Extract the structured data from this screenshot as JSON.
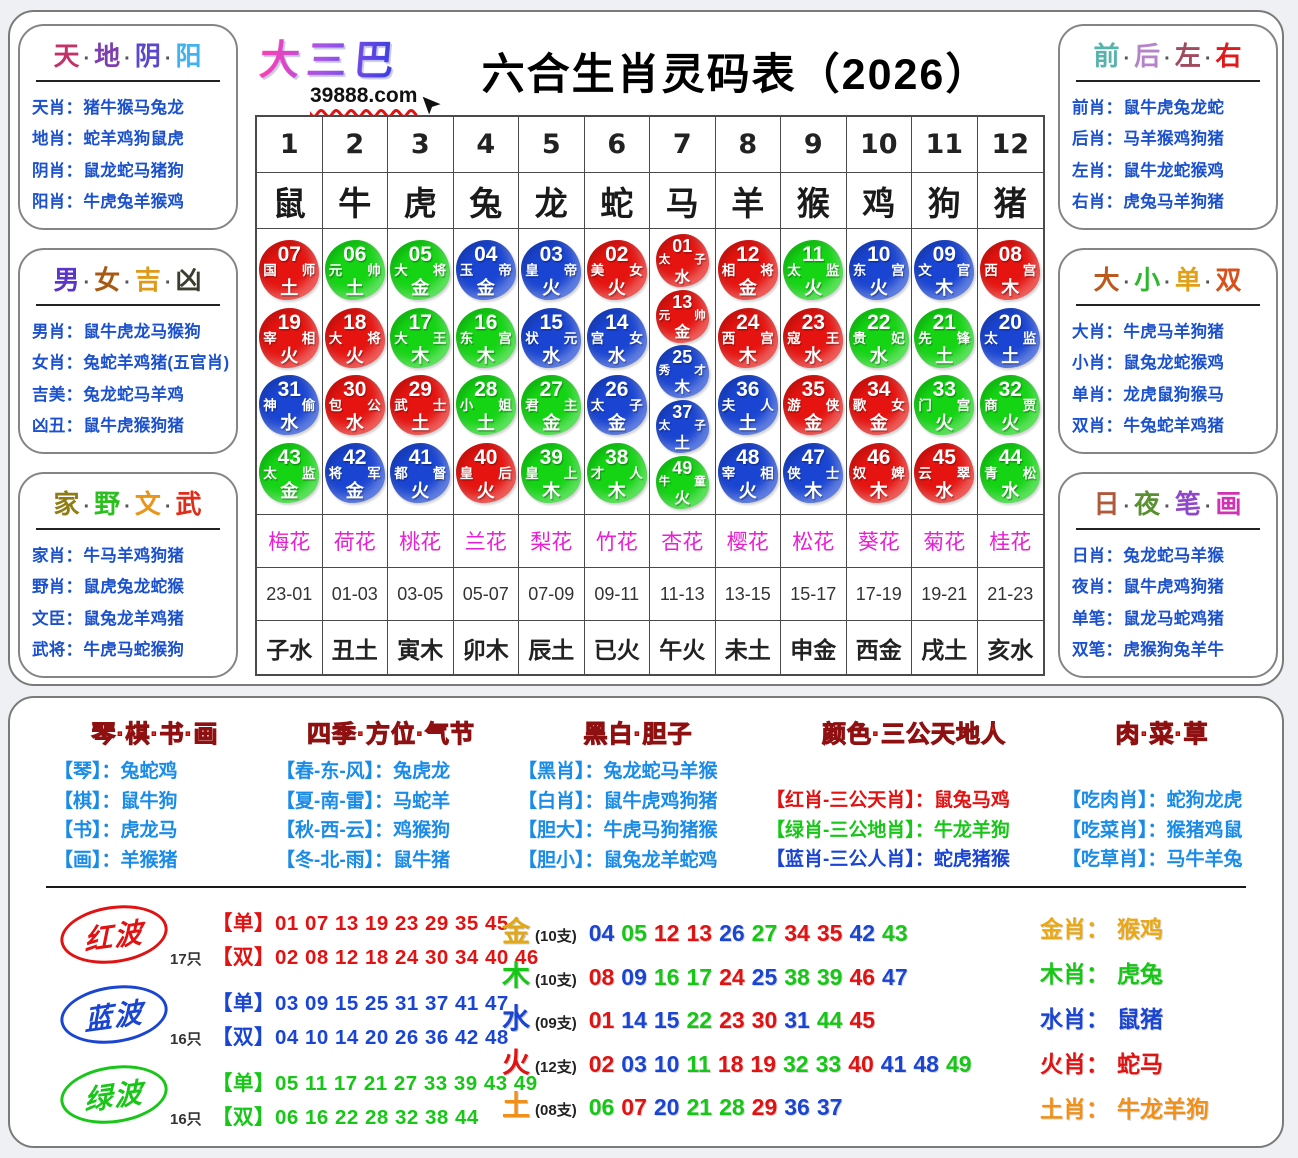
{
  "brand": {
    "logo": "大三巴",
    "url": "39888.com"
  },
  "title": "六合生肖灵码表（2026）",
  "icons": {
    "cursor": "arrow-cursor-icon"
  },
  "colors": {
    "red": "#e01212",
    "green": "#17c617",
    "blue": "#1a45d2"
  },
  "side_panels": {
    "left": [
      {
        "title_parts": [
          {
            "t": "天",
            "c": "#c43368"
          },
          {
            "t": "地",
            "c": "#7d3fae"
          },
          {
            "t": "阴",
            "c": "#5948cc"
          },
          {
            "t": "阳",
            "c": "#3fb3f2"
          }
        ],
        "rows": [
          {
            "label": "天肖：",
            "value": "猪牛猴马兔龙"
          },
          {
            "label": "地肖：",
            "value": "蛇羊鸡狗鼠虎"
          },
          {
            "label": "阴肖：",
            "value": "鼠龙蛇马猪狗"
          },
          {
            "label": "阳肖：",
            "value": "牛虎兔羊猴鸡"
          }
        ]
      },
      {
        "title_parts": [
          {
            "t": "男",
            "c": "#5a35c8"
          },
          {
            "t": "女",
            "c": "#a85a14"
          },
          {
            "t": "吉",
            "c": "#e09a1a"
          },
          {
            "t": "凶",
            "c": "#3c3c30"
          }
        ],
        "rows": [
          {
            "label": "男肖：",
            "value": "鼠牛虎龙马猴狗"
          },
          {
            "label": "女肖：",
            "value": "兔蛇羊鸡猪(五官肖)"
          },
          {
            "label": "吉美：",
            "value": "兔龙蛇马羊鸡"
          },
          {
            "label": "凶丑：",
            "value": "鼠牛虎猴狗猪"
          }
        ]
      },
      {
        "title_parts": [
          {
            "t": "家",
            "c": "#8f7c12"
          },
          {
            "t": "野",
            "c": "#2cc01e"
          },
          {
            "t": "文",
            "c": "#e8951a"
          },
          {
            "t": "武",
            "c": "#e02c1a"
          }
        ],
        "rows": [
          {
            "label": "家肖：",
            "value": "牛马羊鸡狗猪"
          },
          {
            "label": "野肖：",
            "value": "鼠虎兔龙蛇猴"
          },
          {
            "label": "文臣：",
            "value": "鼠兔龙羊鸡猪"
          },
          {
            "label": "武将：",
            "value": "牛虎马蛇猴狗"
          }
        ]
      }
    ],
    "right": [
      {
        "title_parts": [
          {
            "t": "前",
            "c": "#55b3ab"
          },
          {
            "t": "后",
            "c": "#b584c8"
          },
          {
            "t": "左",
            "c": "#a34b5e"
          },
          {
            "t": "右",
            "c": "#e01a1a"
          }
        ],
        "rows": [
          {
            "label": "前肖：",
            "value": "鼠牛虎兔龙蛇"
          },
          {
            "label": "后肖：",
            "value": "马羊猴鸡狗猪"
          },
          {
            "label": "左肖：",
            "value": "鼠牛龙蛇猴鸡"
          },
          {
            "label": "右肖：",
            "value": "虎兔马羊狗猪"
          }
        ]
      },
      {
        "title_parts": [
          {
            "t": "大",
            "c": "#bc5a1e"
          },
          {
            "t": "小",
            "c": "#2cb82c"
          },
          {
            "t": "单",
            "c": "#e0a018"
          },
          {
            "t": "双",
            "c": "#d8501a"
          }
        ],
        "rows": [
          {
            "label": "大肖：",
            "value": "牛虎马羊狗猪"
          },
          {
            "label": "小肖：",
            "value": "鼠兔龙蛇猴鸡"
          },
          {
            "label": "单肖：",
            "value": "龙虎鼠狗猴马"
          },
          {
            "label": "双肖：",
            "value": "牛兔蛇羊鸡猪"
          }
        ]
      },
      {
        "title_parts": [
          {
            "t": "日",
            "c": "#b05a3c"
          },
          {
            "t": "夜",
            "c": "#5a9032"
          },
          {
            "t": "笔",
            "c": "#9048c8"
          },
          {
            "t": "画",
            "c": "#d032b4"
          }
        ],
        "rows": [
          {
            "label": "日肖：",
            "value": "兔龙蛇马羊猴"
          },
          {
            "label": "夜肖：",
            "value": "鼠牛虎鸡狗猪"
          },
          {
            "label": "单笔：",
            "value": "鼠龙马蛇鸡猪"
          },
          {
            "label": "双笔：",
            "value": "虎猴狗兔羊牛"
          }
        ]
      }
    ]
  },
  "main_table": {
    "col_numbers": [
      "1",
      "2",
      "3",
      "4",
      "5",
      "6",
      "7",
      "8",
      "9",
      "10",
      "11",
      "12"
    ],
    "zodiacs": [
      "鼠",
      "牛",
      "虎",
      "兔",
      "龙",
      "蛇",
      "马",
      "羊",
      "猴",
      "鸡",
      "狗",
      "猪"
    ],
    "columns": [
      {
        "circles": [
          {
            "n": "07",
            "t": "国师",
            "e": "土",
            "c": "r"
          },
          {
            "n": "19",
            "t": "宰相",
            "e": "火",
            "c": "r"
          },
          {
            "n": "31",
            "t": "神偷",
            "e": "水",
            "c": "b"
          },
          {
            "n": "43",
            "t": "太监",
            "e": "金",
            "c": "g"
          }
        ]
      },
      {
        "circles": [
          {
            "n": "06",
            "t": "元帅",
            "e": "土",
            "c": "g"
          },
          {
            "n": "18",
            "t": "大将",
            "e": "火",
            "c": "r"
          },
          {
            "n": "30",
            "t": "包公",
            "e": "水",
            "c": "r"
          },
          {
            "n": "42",
            "t": "将军",
            "e": "金",
            "c": "b"
          }
        ]
      },
      {
        "circles": [
          {
            "n": "05",
            "t": "大将",
            "e": "金",
            "c": "g"
          },
          {
            "n": "17",
            "t": "大王",
            "e": "木",
            "c": "g"
          },
          {
            "n": "29",
            "t": "武士",
            "e": "土",
            "c": "r"
          },
          {
            "n": "41",
            "t": "都督",
            "e": "火",
            "c": "b"
          }
        ]
      },
      {
        "circles": [
          {
            "n": "04",
            "t": "玉帝",
            "e": "金",
            "c": "b"
          },
          {
            "n": "16",
            "t": "东宫",
            "e": "木",
            "c": "g"
          },
          {
            "n": "28",
            "t": "小姐",
            "e": "土",
            "c": "g"
          },
          {
            "n": "40",
            "t": "皇后",
            "e": "火",
            "c": "r"
          }
        ]
      },
      {
        "circles": [
          {
            "n": "03",
            "t": "皇帝",
            "e": "火",
            "c": "b"
          },
          {
            "n": "15",
            "t": "状元",
            "e": "水",
            "c": "b"
          },
          {
            "n": "27",
            "t": "君主",
            "e": "金",
            "c": "g"
          },
          {
            "n": "39",
            "t": "皇上",
            "e": "木",
            "c": "g"
          }
        ]
      },
      {
        "circles": [
          {
            "n": "02",
            "t": "美女",
            "e": "火",
            "c": "r"
          },
          {
            "n": "14",
            "t": "宫女",
            "e": "水",
            "c": "b"
          },
          {
            "n": "26",
            "t": "太子",
            "e": "金",
            "c": "b"
          },
          {
            "n": "38",
            "t": "才人",
            "e": "木",
            "c": "g"
          }
        ]
      },
      {
        "small": true,
        "circles": [
          {
            "n": "01",
            "t": "太子",
            "e": "水",
            "c": "r"
          },
          {
            "n": "13",
            "t": "元帅",
            "e": "金",
            "c": "r"
          },
          {
            "n": "25",
            "t": "秀才",
            "e": "木",
            "c": "b"
          },
          {
            "n": "37",
            "t": "太子",
            "e": "土",
            "c": "b"
          },
          {
            "n": "49",
            "t": "牛童",
            "e": "火",
            "c": "g"
          }
        ]
      },
      {
        "circles": [
          {
            "n": "12",
            "t": "相将",
            "e": "金",
            "c": "r"
          },
          {
            "n": "24",
            "t": "西宫",
            "e": "木",
            "c": "r"
          },
          {
            "n": "36",
            "t": "夫人",
            "e": "土",
            "c": "b"
          },
          {
            "n": "48",
            "t": "宰相",
            "e": "火",
            "c": "b"
          }
        ]
      },
      {
        "circles": [
          {
            "n": "11",
            "t": "太监",
            "e": "火",
            "c": "g"
          },
          {
            "n": "23",
            "t": "寇王",
            "e": "水",
            "c": "r"
          },
          {
            "n": "35",
            "t": "游侠",
            "e": "金",
            "c": "r"
          },
          {
            "n": "47",
            "t": "侠士",
            "e": "木",
            "c": "b"
          }
        ]
      },
      {
        "circles": [
          {
            "n": "10",
            "t": "东宫",
            "e": "火",
            "c": "b"
          },
          {
            "n": "22",
            "t": "贵妃",
            "e": "水",
            "c": "g"
          },
          {
            "n": "34",
            "t": "歌女",
            "e": "金",
            "c": "r"
          },
          {
            "n": "46",
            "t": "奴婢",
            "e": "木",
            "c": "r"
          }
        ]
      },
      {
        "circles": [
          {
            "n": "09",
            "t": "文官",
            "e": "木",
            "c": "b"
          },
          {
            "n": "21",
            "t": "先锋",
            "e": "土",
            "c": "g"
          },
          {
            "n": "33",
            "t": "门宫",
            "e": "火",
            "c": "g"
          },
          {
            "n": "45",
            "t": "云翠",
            "e": "水",
            "c": "r"
          }
        ]
      },
      {
        "circles": [
          {
            "n": "08",
            "t": "西宫",
            "e": "木",
            "c": "r"
          },
          {
            "n": "20",
            "t": "太监",
            "e": "土",
            "c": "b"
          },
          {
            "n": "32",
            "t": "商贾",
            "e": "火",
            "c": "g"
          },
          {
            "n": "44",
            "t": "青松",
            "e": "水",
            "c": "g"
          }
        ]
      }
    ],
    "flowers": [
      "梅花",
      "荷花",
      "桃花",
      "兰花",
      "梨花",
      "竹花",
      "杏花",
      "樱花",
      "松花",
      "葵花",
      "菊花",
      "桂花"
    ],
    "times": [
      "23-01",
      "01-03",
      "03-05",
      "05-07",
      "07-09",
      "09-11",
      "11-13",
      "13-15",
      "15-17",
      "17-19",
      "19-21",
      "21-23"
    ],
    "branches": [
      "子水",
      "丑土",
      "寅木",
      "卯木",
      "辰土",
      "已火",
      "午火",
      "未土",
      "申金",
      "西金",
      "戌土",
      "亥水"
    ]
  },
  "bottom": {
    "groups": [
      {
        "title": "琴·棋·书·画",
        "rows": [
          {
            "text": "【琴】：兔蛇鸡"
          },
          {
            "text": "【棋】：鼠牛狗"
          },
          {
            "text": "【书】：虎龙马"
          },
          {
            "text": "【画】：羊猴猪"
          }
        ]
      },
      {
        "title": "四季·方位·气节",
        "rows": [
          {
            "text": "【春-东-风】：兔虎龙"
          },
          {
            "text": "【夏-南-雷】：马蛇羊"
          },
          {
            "text": "【秋-西-云】：鸡猴狗"
          },
          {
            "text": "【冬-北-雨】：鼠牛猪"
          }
        ]
      },
      {
        "title": "黑白·胆子",
        "rows": [
          {
            "text": "【黑肖】：兔龙蛇马羊猴"
          },
          {
            "text": "【白肖】：鼠牛虎鸡狗猪"
          },
          {
            "text": "【胆大】：牛虎马狗猪猴"
          },
          {
            "text": "【胆小】：鼠兔龙羊蛇鸡"
          }
        ]
      },
      {
        "title": "颜色·三公天地人",
        "rows": [
          {
            "text": "【红肖-三公天肖】：鼠兔马鸡",
            "color": "#e01212"
          },
          {
            "text": "【绿肖-三公地肖】：牛龙羊狗",
            "color": "#17c617"
          },
          {
            "text": "【蓝肖-三公人肖】：蛇虎猪猴",
            "color": "#1a45d2"
          }
        ]
      },
      {
        "title": "肉·菜·草",
        "rows": [
          {
            "text": "【吃肉肖】：蛇狗龙虎"
          },
          {
            "text": "【吃菜肖】：猴猪鸡鼠"
          },
          {
            "text": "【吃草肖】：马牛羊兔"
          }
        ]
      }
    ],
    "waves": [
      {
        "name": "红波",
        "count": "17只",
        "color": "#e01212",
        "odd": "【单】01 07 13 19 23 29 35 45",
        "even": "【双】02 08 12 18 24 30 34 40 46"
      },
      {
        "name": "蓝波",
        "count": "16只",
        "color": "#1a45d2",
        "odd": "【单】03 09 15 25 31 37 41 47",
        "even": "【双】04 10 14 20 26 36 42 48"
      },
      {
        "name": "绿波",
        "count": "16只",
        "color": "#17c617",
        "odd": "【单】05 11 17 21 27 33 39 43 49",
        "even": "【双】06 16 22 28 32 38 44"
      }
    ],
    "elements": [
      {
        "label": "金",
        "count": "(10支)",
        "color": "#e0a818",
        "nums": [
          {
            "v": "04",
            "c": "b"
          },
          {
            "v": "05",
            "c": "g"
          },
          {
            "v": "12",
            "c": "r"
          },
          {
            "v": "13",
            "c": "r"
          },
          {
            "v": "26",
            "c": "b"
          },
          {
            "v": "27",
            "c": "g"
          },
          {
            "v": "34",
            "c": "r"
          },
          {
            "v": "35",
            "c": "r"
          },
          {
            "v": "42",
            "c": "b"
          },
          {
            "v": "43",
            "c": "g"
          }
        ]
      },
      {
        "label": "木",
        "count": "(10支)",
        "color": "#17c617",
        "nums": [
          {
            "v": "08",
            "c": "r"
          },
          {
            "v": "09",
            "c": "b"
          },
          {
            "v": "16",
            "c": "g"
          },
          {
            "v": "17",
            "c": "g"
          },
          {
            "v": "24",
            "c": "r"
          },
          {
            "v": "25",
            "c": "b"
          },
          {
            "v": "38",
            "c": "g"
          },
          {
            "v": "39",
            "c": "g"
          },
          {
            "v": "46",
            "c": "r"
          },
          {
            "v": "47",
            "c": "b"
          }
        ]
      },
      {
        "label": "水",
        "count": "(09支)",
        "color": "#1a45d2",
        "nums": [
          {
            "v": "01",
            "c": "r"
          },
          {
            "v": "14",
            "c": "b"
          },
          {
            "v": "15",
            "c": "b"
          },
          {
            "v": "22",
            "c": "g"
          },
          {
            "v": "23",
            "c": "r"
          },
          {
            "v": "30",
            "c": "r"
          },
          {
            "v": "31",
            "c": "b"
          },
          {
            "v": "44",
            "c": "g"
          },
          {
            "v": "45",
            "c": "r"
          }
        ]
      },
      {
        "label": "火",
        "count": "(12支)",
        "color": "#e01212",
        "nums": [
          {
            "v": "02",
            "c": "r"
          },
          {
            "v": "03",
            "c": "b"
          },
          {
            "v": "10",
            "c": "b"
          },
          {
            "v": "11",
            "c": "g"
          },
          {
            "v": "18",
            "c": "r"
          },
          {
            "v": "19",
            "c": "r"
          },
          {
            "v": "32",
            "c": "g"
          },
          {
            "v": "33",
            "c": "g"
          },
          {
            "v": "40",
            "c": "r"
          },
          {
            "v": "41",
            "c": "b"
          },
          {
            "v": "48",
            "c": "b"
          },
          {
            "v": "49",
            "c": "g"
          }
        ]
      },
      {
        "label": "土",
        "count": "(08支)",
        "color": "#f09018",
        "nums": [
          {
            "v": "06",
            "c": "g"
          },
          {
            "v": "07",
            "c": "r"
          },
          {
            "v": "20",
            "c": "b"
          },
          {
            "v": "21",
            "c": "g"
          },
          {
            "v": "28",
            "c": "g"
          },
          {
            "v": "29",
            "c": "r"
          },
          {
            "v": "36",
            "c": "b"
          },
          {
            "v": "37",
            "c": "b"
          }
        ]
      }
    ],
    "element_zodiac": [
      {
        "label": "金肖：",
        "value": "猴鸡",
        "color": "#e8a818"
      },
      {
        "label": "木肖：",
        "value": "虎兔",
        "color": "#17c617"
      },
      {
        "label": "水肖：",
        "value": "鼠猪",
        "color": "#1a45d2"
      },
      {
        "label": "火肖：",
        "value": "蛇马",
        "color": "#e01212"
      },
      {
        "label": "土肖：",
        "value": "牛龙羊狗",
        "color": "#f09018"
      }
    ]
  }
}
